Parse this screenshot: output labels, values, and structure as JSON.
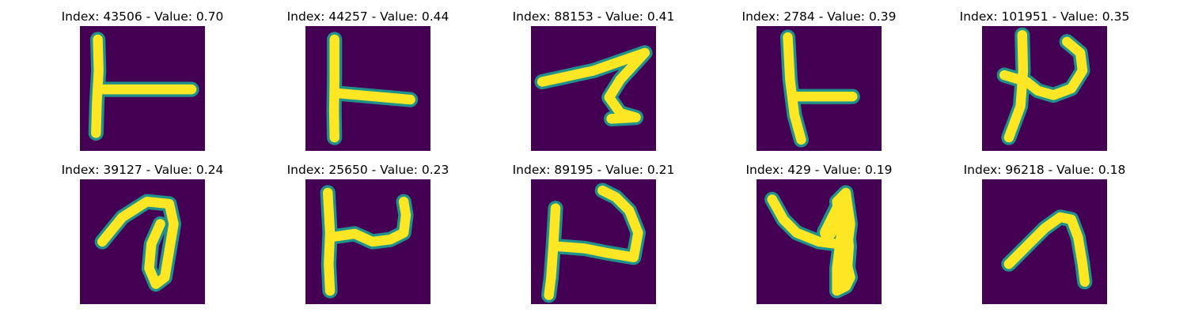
{
  "background_color": "#440154",
  "stroke_color": "#fde725",
  "edge_color": "#21918c",
  "panels": [
    {
      "label": "Index: 43506 - Value: 0.70",
      "glyph": "t-cross-tall"
    },
    {
      "label": "Index: 44257 - Value: 0.44",
      "glyph": "t-cross-medium"
    },
    {
      "label": "Index: 88153 - Value: 0.41",
      "glyph": "z-stroke"
    },
    {
      "label": "Index: 2784 - Value: 0.39",
      "glyph": "t-cross-short"
    },
    {
      "label": "Index: 101951 - Value: 0.35",
      "glyph": "p-curl"
    },
    {
      "label": "Index: 39127 - Value: 0.24",
      "glyph": "loop-stroke"
    },
    {
      "label": "Index: 25650 - Value: 0.23",
      "glyph": "h-shape"
    },
    {
      "label": "Index: 89195 - Value: 0.21",
      "glyph": "p-hook"
    },
    {
      "label": "Index: 429 - Value: 0.19",
      "glyph": "v-wedge"
    },
    {
      "label": "Index: 96218 - Value: 0.18",
      "glyph": "arch-stroke"
    }
  ]
}
